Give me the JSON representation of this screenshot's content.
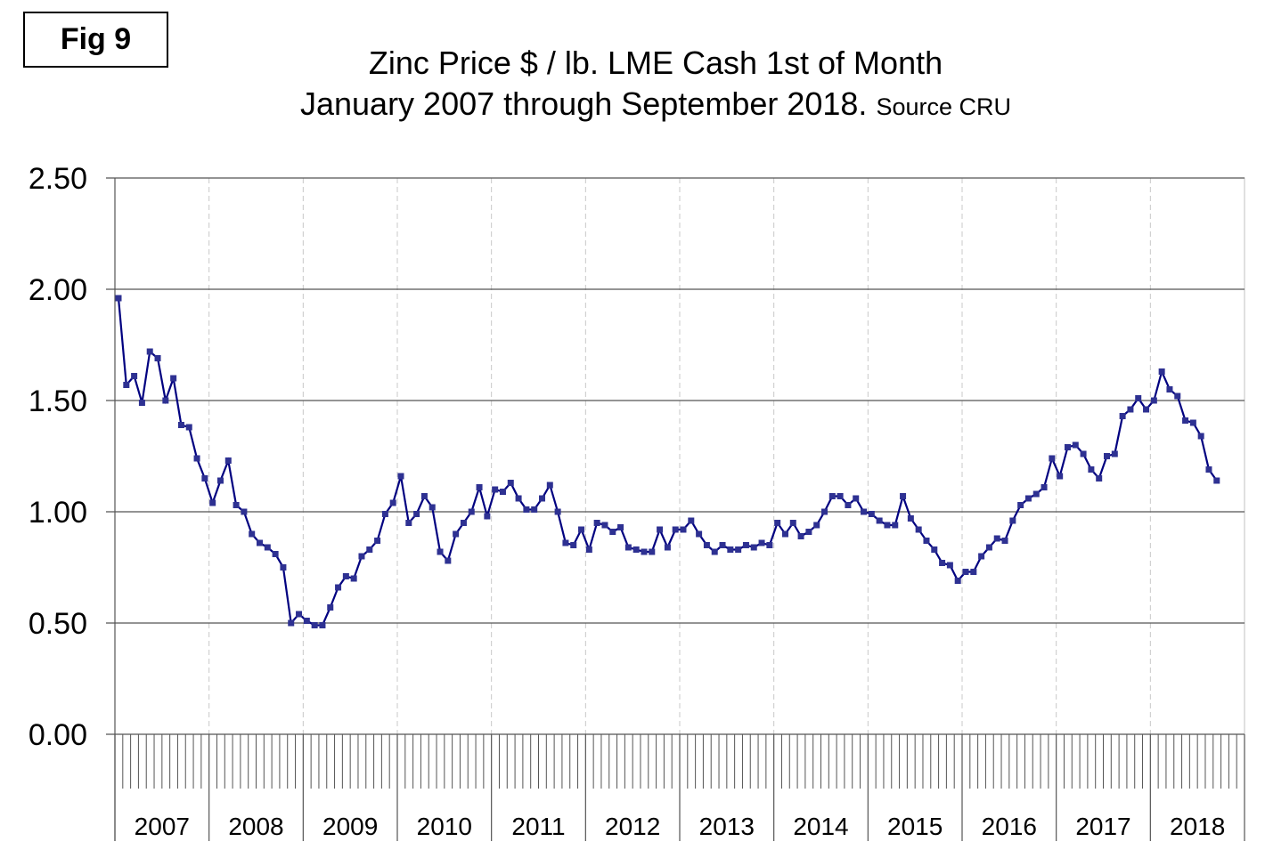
{
  "fig_label": "Fig 9",
  "chart_data": {
    "type": "line",
    "title": "Zinc Price $ / lb. LME Cash 1st of Month",
    "subtitle": "January 2007 through September 2018.",
    "source": "Source CRU",
    "xlabel": "",
    "ylabel": "",
    "ylim": [
      0,
      2.5
    ],
    "yticks": [
      "0.00",
      "0.50",
      "1.00",
      "1.50",
      "2.00",
      "2.50"
    ],
    "ytick_values": [
      0,
      0.5,
      1,
      1.5,
      2,
      2.5
    ],
    "years": [
      "2007",
      "2008",
      "2009",
      "2010",
      "2011",
      "2012",
      "2013",
      "2014",
      "2015",
      "2016",
      "2017",
      "2018"
    ],
    "grid": true,
    "series": [
      {
        "name": "Zinc Price",
        "color": "#000080",
        "marker_color": "#2e3192",
        "start": "2007-01",
        "values": [
          1.96,
          1.57,
          1.61,
          1.49,
          1.72,
          1.69,
          1.5,
          1.6,
          1.39,
          1.38,
          1.24,
          1.15,
          1.04,
          1.14,
          1.23,
          1.03,
          1.0,
          0.9,
          0.86,
          0.84,
          0.81,
          0.75,
          0.5,
          0.54,
          0.51,
          0.49,
          0.49,
          0.57,
          0.66,
          0.71,
          0.7,
          0.8,
          0.83,
          0.87,
          0.99,
          1.04,
          1.16,
          0.95,
          0.99,
          1.07,
          1.02,
          0.82,
          0.78,
          0.9,
          0.95,
          1.0,
          1.11,
          0.98,
          1.1,
          1.09,
          1.13,
          1.06,
          1.01,
          1.01,
          1.06,
          1.12,
          1.0,
          0.86,
          0.85,
          0.92,
          0.83,
          0.95,
          0.94,
          0.91,
          0.93,
          0.84,
          0.83,
          0.82,
          0.82,
          0.92,
          0.84,
          0.92,
          0.92,
          0.96,
          0.9,
          0.85,
          0.82,
          0.85,
          0.83,
          0.83,
          0.85,
          0.84,
          0.86,
          0.85,
          0.95,
          0.9,
          0.95,
          0.89,
          0.91,
          0.94,
          1.0,
          1.07,
          1.07,
          1.03,
          1.06,
          1.0,
          0.99,
          0.96,
          0.94,
          0.94,
          1.07,
          0.97,
          0.92,
          0.87,
          0.83,
          0.77,
          0.76,
          0.69,
          0.73,
          0.73,
          0.8,
          0.84,
          0.88,
          0.87,
          0.96,
          1.03,
          1.06,
          1.08,
          1.11,
          1.24,
          1.16,
          1.29,
          1.3,
          1.26,
          1.19,
          1.15,
          1.25,
          1.26,
          1.43,
          1.46,
          1.51,
          1.46,
          1.5,
          1.63,
          1.55,
          1.52,
          1.41,
          1.4,
          1.34,
          1.19,
          1.14
        ]
      }
    ]
  }
}
